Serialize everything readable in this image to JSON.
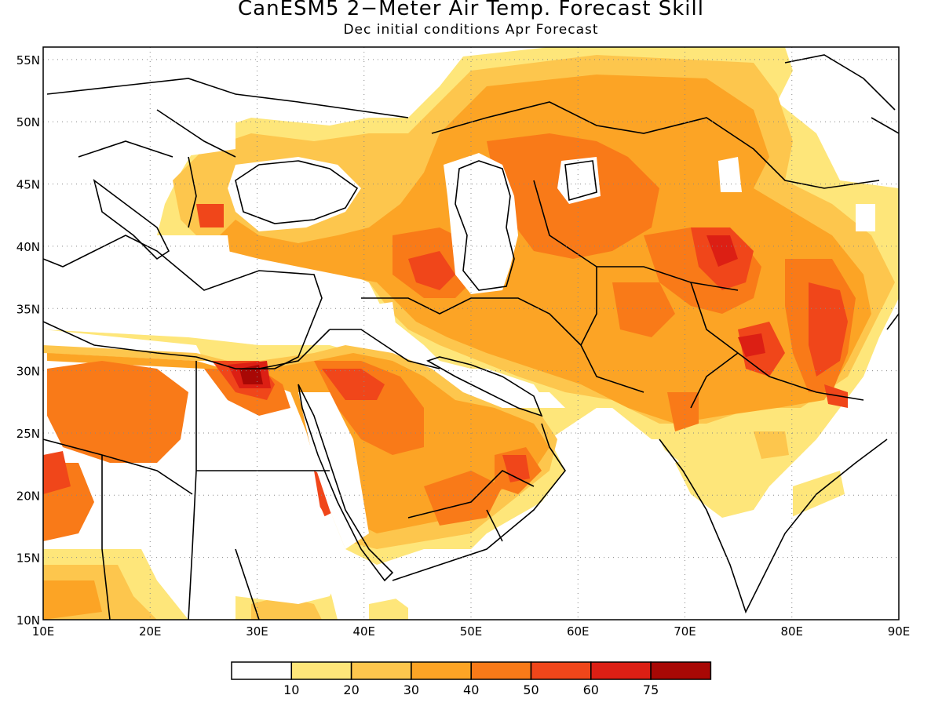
{
  "title": "CanESM5 2−Meter Air Temp. Forecast Skill",
  "subtitle": "Dec initial conditions  Apr Forecast",
  "axes": {
    "lat_labels": [
      "55N",
      "50N",
      "45N",
      "40N",
      "35N",
      "30N",
      "25N",
      "20N",
      "15N",
      "10N"
    ],
    "lon_labels": [
      "10E",
      "20E",
      "30E",
      "40E",
      "50E",
      "60E",
      "70E",
      "80E",
      "90E"
    ],
    "lat_range": [
      10,
      56
    ],
    "lon_range": [
      10,
      90
    ],
    "grid": "dotted"
  },
  "legend": {
    "colors": [
      "#ffffff",
      "#fee67a",
      "#fdc64d",
      "#fca425",
      "#f97a18",
      "#f0461a",
      "#dc1f14",
      "#a80805"
    ],
    "labels": [
      "10",
      "20",
      "30",
      "40",
      "50",
      "60",
      "75"
    ]
  }
}
